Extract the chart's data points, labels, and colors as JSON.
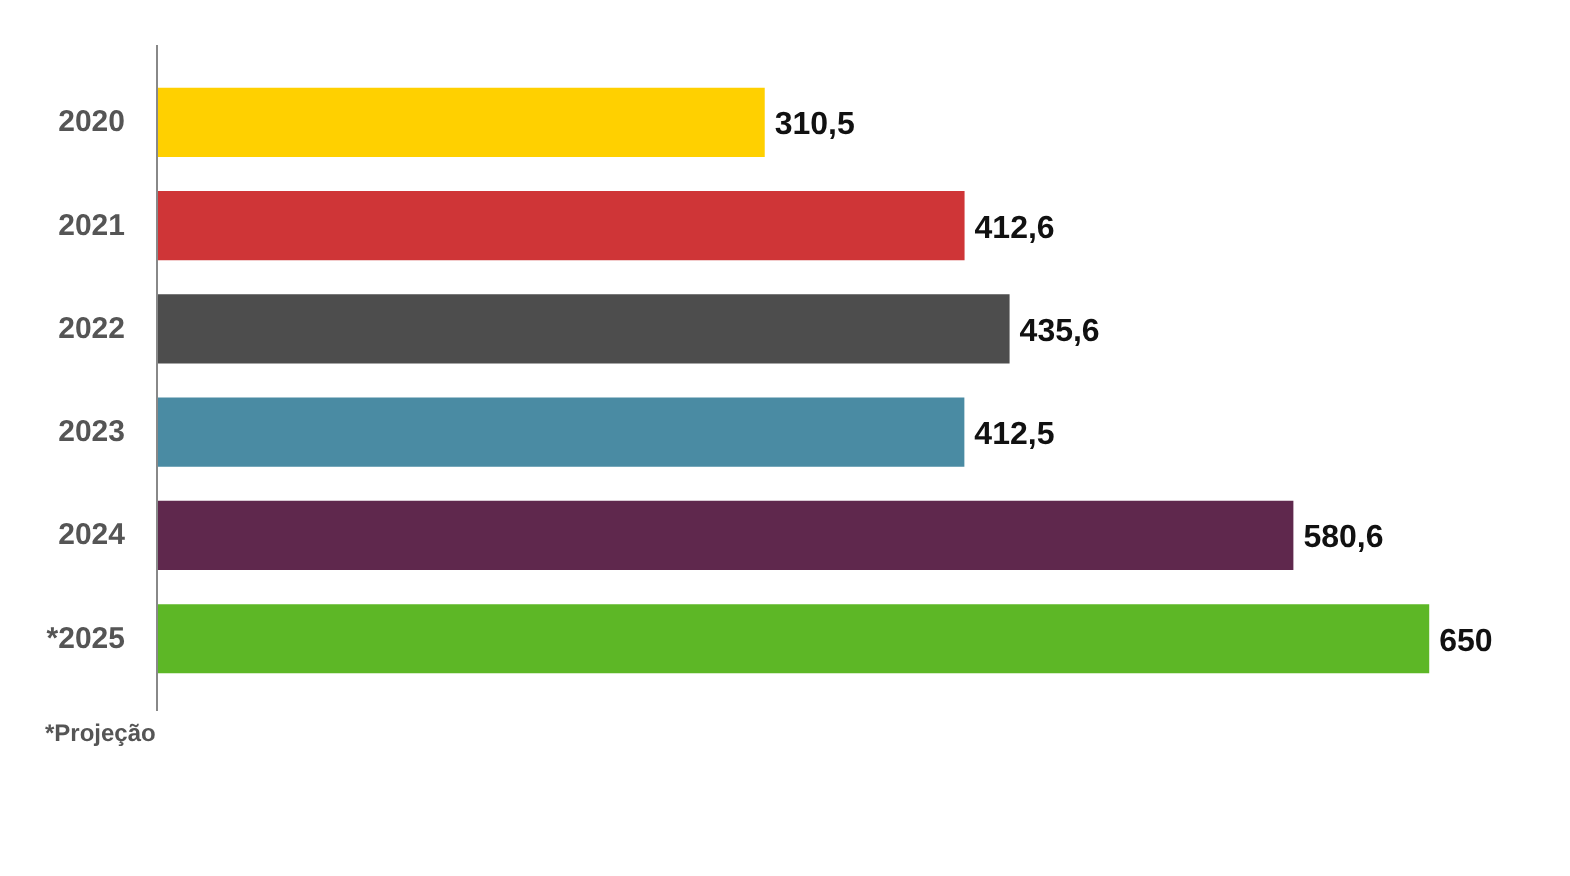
{
  "chart_data": {
    "type": "bar",
    "orientation": "horizontal",
    "categories": [
      "2020",
      "2021",
      "2022",
      "2023",
      "2024",
      "*2025"
    ],
    "values": [
      310.5,
      412.6,
      435.6,
      412.5,
      580.6,
      650
    ],
    "value_labels": [
      "310,5",
      "412,6",
      "435,6",
      "412,5",
      "580,6",
      "650"
    ],
    "colors": [
      "#ffd000",
      "#cf3537",
      "#4d4d4d",
      "#4a8ba3",
      "#5f284d",
      "#5db726"
    ],
    "tick_labels": "y",
    "grid": false,
    "annotations": [
      "*Projeção"
    ]
  }
}
